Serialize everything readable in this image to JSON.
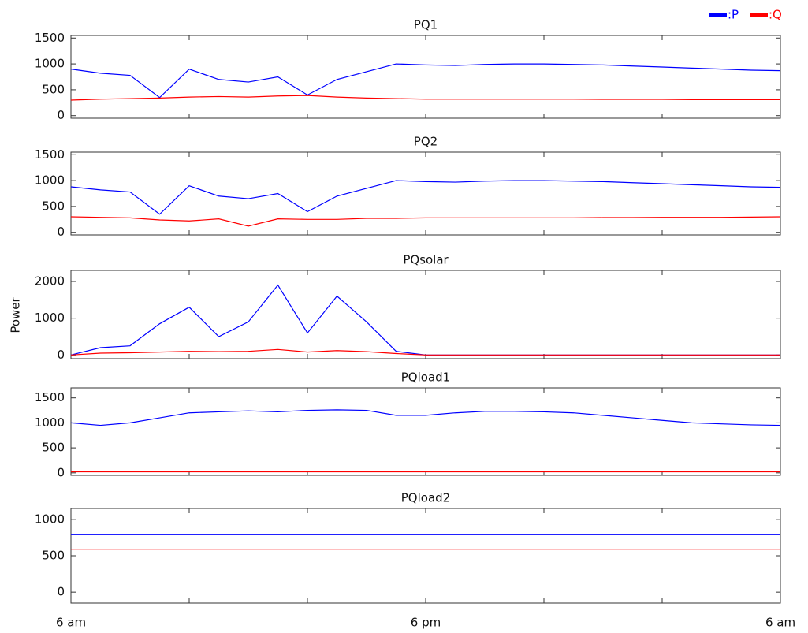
{
  "ylabel": "Power",
  "chart_data": [
    {
      "type": "line",
      "title": "PQ1",
      "legend": "upper right",
      "x": [
        0,
        1,
        2,
        3,
        4,
        5,
        6,
        7,
        8,
        9,
        10,
        11,
        12,
        13,
        14,
        15,
        16,
        17,
        18,
        19,
        20,
        21,
        22,
        23,
        24
      ],
      "xlim": [
        0,
        24
      ],
      "xticks": [
        {
          "value": 0,
          "label": "6 am"
        },
        {
          "value": 12,
          "label": "6 pm"
        },
        {
          "value": 24,
          "label": "6 am"
        }
      ],
      "xminorticks": [
        4,
        8,
        16,
        20
      ],
      "ylim": [
        -50,
        1550
      ],
      "yticks": [
        0,
        500,
        1000,
        1500
      ],
      "series": [
        {
          "name": ":P",
          "color": "#0000ff",
          "values": [
            900,
            820,
            780,
            350,
            900,
            700,
            650,
            750,
            400,
            700,
            850,
            1000,
            980,
            970,
            990,
            1000,
            1000,
            990,
            980,
            960,
            940,
            920,
            900,
            880,
            870
          ]
        },
        {
          "name": ":Q",
          "color": "#ff0000",
          "values": [
            300,
            320,
            330,
            340,
            360,
            370,
            360,
            380,
            390,
            360,
            340,
            330,
            320,
            320,
            320,
            320,
            320,
            320,
            315,
            315,
            315,
            310,
            310,
            310,
            310
          ]
        }
      ]
    },
    {
      "type": "line",
      "title": "PQ2",
      "x": [
        0,
        1,
        2,
        3,
        4,
        5,
        6,
        7,
        8,
        9,
        10,
        11,
        12,
        13,
        14,
        15,
        16,
        17,
        18,
        19,
        20,
        21,
        22,
        23,
        24
      ],
      "xlim": [
        0,
        24
      ],
      "xticks": [
        {
          "value": 0,
          "label": "6 am"
        },
        {
          "value": 12,
          "label": "6 pm"
        },
        {
          "value": 24,
          "label": "6 am"
        }
      ],
      "xminorticks": [
        4,
        8,
        16,
        20
      ],
      "ylim": [
        -50,
        1550
      ],
      "yticks": [
        0,
        500,
        1000,
        1500
      ],
      "series": [
        {
          "name": ":P",
          "color": "#0000ff",
          "values": [
            880,
            820,
            780,
            350,
            900,
            700,
            650,
            750,
            400,
            700,
            850,
            1000,
            980,
            970,
            990,
            1000,
            1000,
            990,
            980,
            960,
            940,
            920,
            900,
            880,
            870
          ]
        },
        {
          "name": ":Q",
          "color": "#ff0000",
          "values": [
            300,
            290,
            280,
            240,
            220,
            260,
            120,
            260,
            250,
            250,
            270,
            270,
            280,
            280,
            280,
            280,
            280,
            280,
            285,
            285,
            290,
            290,
            290,
            295,
            300
          ]
        }
      ]
    },
    {
      "type": "line",
      "title": "PQsolar",
      "x": [
        0,
        1,
        2,
        3,
        4,
        5,
        6,
        7,
        8,
        9,
        10,
        11,
        12,
        13,
        14,
        15,
        16,
        17,
        18,
        19,
        20,
        21,
        22,
        23,
        24
      ],
      "xlim": [
        0,
        24
      ],
      "xticks": [
        {
          "value": 0,
          "label": "6 am"
        },
        {
          "value": 12,
          "label": "6 pm"
        },
        {
          "value": 24,
          "label": "6 am"
        }
      ],
      "xminorticks": [
        4,
        8,
        16,
        20
      ],
      "ylim": [
        -100,
        2300
      ],
      "yticks": [
        0,
        1000,
        2000
      ],
      "series": [
        {
          "name": ":P",
          "color": "#0000ff",
          "values": [
            0,
            200,
            250,
            850,
            1300,
            500,
            900,
            1900,
            600,
            1600,
            900,
            100,
            0,
            0,
            0,
            0,
            0,
            0,
            0,
            0,
            0,
            0,
            0,
            0,
            0
          ]
        },
        {
          "name": ":Q",
          "color": "#ff0000",
          "values": [
            0,
            50,
            60,
            80,
            100,
            90,
            100,
            150,
            80,
            120,
            90,
            40,
            0,
            0,
            0,
            0,
            0,
            0,
            0,
            0,
            0,
            0,
            0,
            0,
            0
          ]
        }
      ]
    },
    {
      "type": "line",
      "title": "PQload1",
      "x": [
        0,
        1,
        2,
        3,
        4,
        5,
        6,
        7,
        8,
        9,
        10,
        11,
        12,
        13,
        14,
        15,
        16,
        17,
        18,
        19,
        20,
        21,
        22,
        23,
        24
      ],
      "xlim": [
        0,
        24
      ],
      "xticks": [
        {
          "value": 0,
          "label": "6 am"
        },
        {
          "value": 12,
          "label": "6 pm"
        },
        {
          "value": 24,
          "label": "6 am"
        }
      ],
      "xminorticks": [
        4,
        8,
        16,
        20
      ],
      "ylim": [
        -50,
        1700
      ],
      "yticks": [
        0,
        500,
        1000,
        1500
      ],
      "series": [
        {
          "name": ":P",
          "color": "#0000ff",
          "values": [
            1000,
            950,
            1000,
            1100,
            1200,
            1220,
            1240,
            1220,
            1250,
            1260,
            1250,
            1150,
            1150,
            1200,
            1230,
            1230,
            1220,
            1200,
            1150,
            1100,
            1050,
            1000,
            980,
            960,
            950
          ]
        },
        {
          "name": ":Q",
          "color": "#ff0000",
          "values": [
            20,
            20,
            20,
            20,
            20,
            20,
            20,
            20,
            20,
            20,
            20,
            20,
            20,
            20,
            20,
            20,
            20,
            20,
            20,
            20,
            20,
            20,
            20,
            20,
            20
          ]
        }
      ]
    },
    {
      "type": "line",
      "title": "PQload2",
      "x": [
        0,
        1,
        2,
        3,
        4,
        5,
        6,
        7,
        8,
        9,
        10,
        11,
        12,
        13,
        14,
        15,
        16,
        17,
        18,
        19,
        20,
        21,
        22,
        23,
        24
      ],
      "xlim": [
        0,
        24
      ],
      "xticks": [
        {
          "value": 0,
          "label": "6 am"
        },
        {
          "value": 12,
          "label": "6 pm"
        },
        {
          "value": 24,
          "label": "6 am"
        }
      ],
      "xminorticks": [
        4,
        8,
        16,
        20
      ],
      "ylim": [
        -150,
        1150
      ],
      "yticks": [
        0,
        500,
        1000
      ],
      "series": [
        {
          "name": ":P",
          "color": "#0000ff",
          "values": [
            790,
            790,
            790,
            790,
            790,
            790,
            790,
            790,
            790,
            790,
            790,
            790,
            790,
            790,
            790,
            790,
            790,
            790,
            790,
            790,
            790,
            790,
            790,
            790,
            790
          ]
        },
        {
          "name": ":Q",
          "color": "#ff0000",
          "values": [
            590,
            590,
            590,
            590,
            590,
            590,
            590,
            590,
            590,
            590,
            590,
            590,
            590,
            590,
            590,
            590,
            590,
            590,
            590,
            590,
            590,
            590,
            590,
            590,
            590
          ]
        }
      ]
    }
  ]
}
